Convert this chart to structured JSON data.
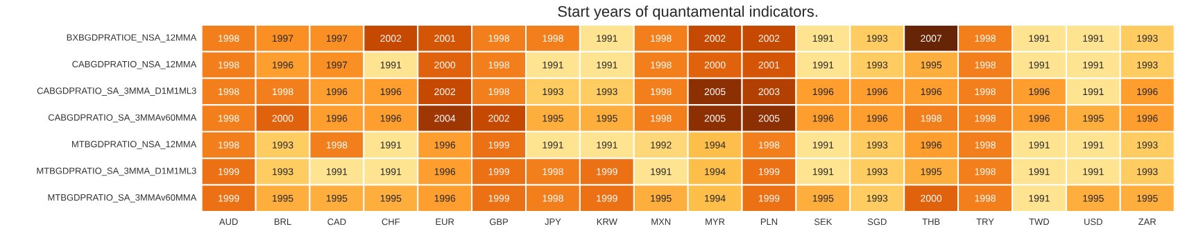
{
  "chart_data": {
    "type": "heatmap",
    "title": "Start years of quantamental indicators.",
    "categories": [
      "AUD",
      "BRL",
      "CAD",
      "CHF",
      "EUR",
      "GBP",
      "JPY",
      "KRW",
      "MXN",
      "MYR",
      "PLN",
      "SEK",
      "SGD",
      "THB",
      "TRY",
      "TWD",
      "USD",
      "ZAR"
    ],
    "y_categories": [
      "BXBGDPRATIOE_NSA_12MMA",
      "CABGDPRATIO_NSA_12MMA",
      "CABGDPRATIO_SA_3MMA_D1M1ML3",
      "CABGDPRATIO_SA_3MMAv60MMA",
      "MTBGDPRATIO_NSA_12MMA",
      "MTBGDPRATIO_SA_3MMA_D1M1ML3",
      "MTBGDPRATIO_SA_3MMAv60MMA"
    ],
    "cells": [
      [
        1998,
        1997,
        1997,
        2002,
        2001,
        1998,
        1998,
        1991,
        1998,
        2002,
        2002,
        1991,
        1993,
        2007,
        1998,
        1991,
        1991,
        1993
      ],
      [
        1998,
        1996,
        1997,
        1991,
        2000,
        1998,
        1991,
        1991,
        1998,
        2000,
        2001,
        1991,
        1993,
        1995,
        1998,
        1991,
        1991,
        1993
      ],
      [
        1998,
        1998,
        1996,
        1996,
        2002,
        1998,
        1993,
        1993,
        1998,
        2005,
        2003,
        1996,
        1996,
        1996,
        1998,
        1996,
        1991,
        1996
      ],
      [
        1998,
        2000,
        1996,
        1996,
        2004,
        2002,
        1995,
        1995,
        1998,
        2005,
        2005,
        1996,
        1996,
        1998,
        1998,
        1996,
        1995,
        1996
      ],
      [
        1998,
        1993,
        1998,
        1991,
        1996,
        1999,
        1991,
        1991,
        1992,
        1994,
        1998,
        1991,
        1993,
        1996,
        1998,
        1991,
        1991,
        1993
      ],
      [
        1999,
        1993,
        1991,
        1991,
        1996,
        1999,
        1998,
        1999,
        1991,
        1994,
        1999,
        1991,
        1993,
        1995,
        1998,
        1991,
        1991,
        1993
      ],
      [
        1999,
        1995,
        1995,
        1995,
        1996,
        1999,
        1998,
        1999,
        1995,
        1994,
        1999,
        1995,
        1993,
        2000,
        1998,
        1991,
        1995,
        1995
      ]
    ],
    "data_labels": true
  }
}
